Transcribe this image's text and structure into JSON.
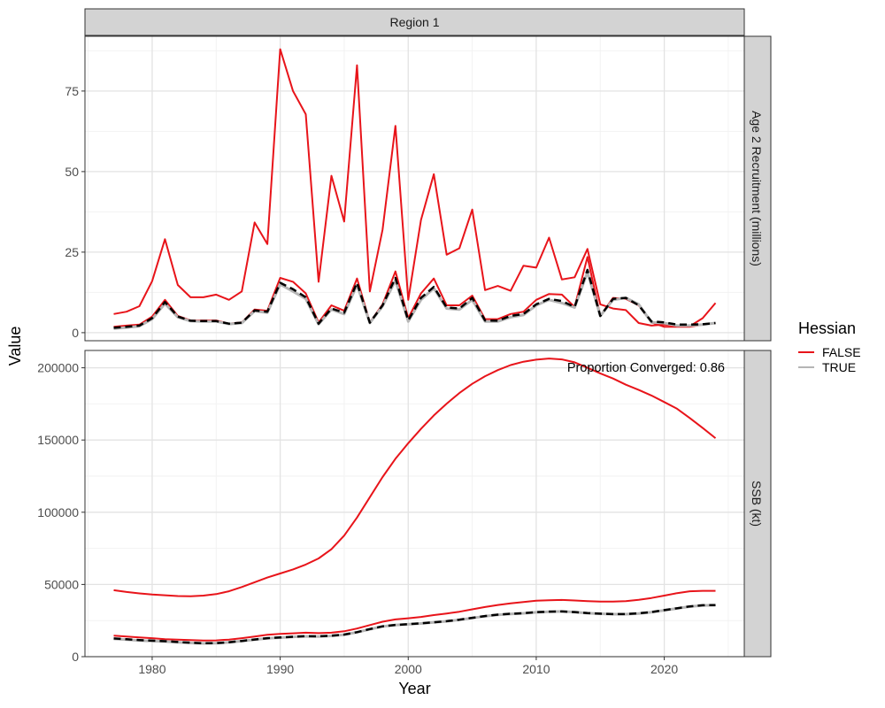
{
  "chart_data": {
    "type": "line",
    "facet_column": "Region 1",
    "xlabel": "Year",
    "ylabel": "Value",
    "xlim": [
      1974.75,
      2026.25
    ],
    "x_ticks": [
      1980,
      1990,
      2000,
      2010,
      2020
    ],
    "x": [
      1977,
      1978,
      1979,
      1980,
      1981,
      1982,
      1983,
      1984,
      1985,
      1986,
      1987,
      1988,
      1989,
      1990,
      1991,
      1992,
      1993,
      1994,
      1995,
      1996,
      1997,
      1998,
      1999,
      2000,
      2001,
      2002,
      2003,
      2004,
      2005,
      2006,
      2007,
      2008,
      2009,
      2010,
      2011,
      2012,
      2013,
      2014,
      2015,
      2016,
      2017,
      2018,
      2019,
      2020,
      2021,
      2022,
      2023,
      2024
    ],
    "legend": {
      "title": "Hessian",
      "position": "right",
      "entries": [
        {
          "label": "FALSE",
          "color": "#e8141a",
          "dashed": false
        },
        {
          "label": "TRUE",
          "color": "#b5b5b5",
          "dashed": false
        }
      ]
    },
    "colors": {
      "false_line": "#e8141a",
      "true_line": "#b5b5b5",
      "median_line": "#000000",
      "strip_fill": "#d3d3d3",
      "panel_border": "#333333",
      "grid_major": "#e3e3e3",
      "grid_minor": "#f2f2f2"
    },
    "grid": true,
    "panels": [
      {
        "strip": "Age 2 Recruitment (millions)",
        "ylim": [
          -2.5,
          92
        ],
        "y_ticks": [
          0,
          25,
          50,
          75
        ],
        "y_tick_labels": [
          "0",
          "25",
          "50",
          "75"
        ],
        "series": [
          {
            "hessian": "FALSE",
            "style": "upper",
            "values": [
              5.8,
              6.5,
              8.2,
              16,
              29,
              14.8,
              11,
              11,
              11.8,
              10.2,
              12.8,
              34.2,
              27.5,
              88,
              75,
              67.8,
              15.8,
              48.7,
              34.5,
              83,
              12.8,
              32,
              64.2,
              10.2,
              35,
              49.2,
              24.2,
              26.2,
              38.2,
              13.2,
              14.5,
              13,
              20.8,
              20.2,
              29.5,
              16.5,
              17.2,
              26,
              8.8,
              7.5,
              7,
              3,
              2.2,
              2.5,
              2.2,
              2,
              4.5,
              9.2
            ]
          },
          {
            "hessian": "FALSE",
            "style": "lower",
            "values": [
              1.8,
              2.2,
              2.5,
              5,
              10.2,
              5.2,
              3.8,
              3.8,
              3.8,
              2.8,
              3.2,
              7.2,
              6.8,
              17,
              15.8,
              12.2,
              3.2,
              8.5,
              6.8,
              16.8,
              3.2,
              8.8,
              19,
              4.5,
              12.2,
              16.8,
              8.5,
              8.5,
              11.5,
              4.2,
              4.2,
              5.8,
              6.5,
              10.2,
              12,
              11.8,
              8,
              23.5,
              5.2,
              10.8,
              10.5,
              8.5,
              3.2,
              1.8,
              1.8,
              1.8,
              2.5,
              3
            ]
          },
          {
            "hessian": "TRUE",
            "style": "solid",
            "values": [
              1.3,
              1.6,
              2,
              4.2,
              9,
              4.8,
              3.6,
              3.5,
              3.5,
              2.7,
              3,
              6.7,
              6.2,
              15,
              12.8,
              10.5,
              2.6,
              7.2,
              5.8,
              14.8,
              3,
              8.2,
              16.2,
              3.5,
              10.2,
              13.8,
              7.5,
              7.2,
              10.2,
              3.5,
              3.5,
              4.8,
              5.5,
              8.5,
              10.2,
              9.2,
              7.8,
              18.8,
              5.2,
              10.2,
              10.8,
              8.8,
              3.2,
              3,
              2.2,
              2.2,
              2.5,
              3
            ]
          },
          {
            "hessian": "median",
            "style": "dashed",
            "values": [
              1.5,
              1.8,
              2.2,
              4.5,
              9.5,
              5,
              3.7,
              3.6,
              3.6,
              2.8,
              3.1,
              6.9,
              6.5,
              15.5,
              13.5,
              11,
              2.8,
              7.5,
              6.2,
              15.5,
              3.1,
              8.5,
              17,
              3.8,
              10.8,
              14.2,
              7.8,
              7.5,
              10.8,
              3.8,
              3.7,
              5.2,
              5.8,
              8.8,
              10.5,
              9.8,
              8,
              19.5,
              5.2,
              10.5,
              10.8,
              8.5,
              3.5,
              3.2,
              2.5,
              2.5,
              2.6,
              3
            ]
          }
        ]
      },
      {
        "strip": "SSB (kt)",
        "ylim": [
          0,
          212000
        ],
        "y_ticks": [
          0,
          50000,
          100000,
          150000,
          200000
        ],
        "y_tick_labels": [
          "0",
          "50000",
          "100000",
          "150000",
          "200000"
        ],
        "annotation": "Proportion Converged:  0.86",
        "series": [
          {
            "hessian": "FALSE",
            "style": "upper",
            "values": [
              46000,
              44800,
              43800,
              43000,
              42500,
              42000,
              41800,
              42300,
              43300,
              45300,
              48200,
              51500,
              54800,
              57600,
              60400,
              63800,
              68000,
              74400,
              83800,
              96300,
              110400,
              124400,
              137000,
              147800,
              157700,
              167000,
              175200,
              182500,
              188900,
              194200,
              198400,
              201900,
              204200,
              205600,
              206400,
              205800,
              203800,
              200000,
              196100,
              192600,
              188300,
              184700,
              180800,
              176300,
              171600,
              165200,
              158300,
              151300
            ]
          },
          {
            "hessian": "FALSE",
            "style": "lower",
            "values": [
              14500,
              14000,
              13300,
              12800,
              12100,
              11800,
              11500,
              11200,
              11300,
              11800,
              12800,
              14000,
              15200,
              15800,
              16200,
              16600,
              16300,
              16600,
              17600,
              19500,
              21900,
              24200,
              25800,
              26600,
              27500,
              28800,
              29900,
              31100,
              32800,
              34400,
              35800,
              36900,
              37800,
              38700,
              39100,
              39300,
              38900,
              38400,
              38100,
              38100,
              38400,
              39400,
              40600,
              42300,
              44000,
              45300,
              45600,
              45600
            ]
          },
          {
            "hessian": "TRUE",
            "style": "solid",
            "values": [
              12300,
              11800,
              11200,
              10800,
              10500,
              10000,
              9500,
              9200,
              9300,
              9900,
              10800,
              11800,
              12700,
              13200,
              13700,
              14100,
              14000,
              14400,
              15200,
              16900,
              19000,
              20900,
              21900,
              22400,
              23000,
              23700,
              24500,
              25500,
              26800,
              28000,
              29000,
              29600,
              30000,
              30700,
              31100,
              31300,
              30900,
              30100,
              29700,
              29400,
              29400,
              29900,
              30800,
              32100,
              33400,
              34700,
              35500,
              35600
            ]
          },
          {
            "hessian": "median",
            "style": "dashed",
            "values": [
              12600,
              12100,
              11500,
              11100,
              10700,
              10200,
              9700,
              9300,
              9400,
              10000,
              10900,
              11900,
              12800,
              13300,
              13800,
              14200,
              14100,
              14500,
              15300,
              17000,
              19100,
              21000,
              22000,
              22500,
              23100,
              23800,
              24600,
              25600,
              26900,
              28100,
              29100,
              29700,
              30100,
              30800,
              31200,
              31300,
              30900,
              30200,
              29800,
              29500,
              29500,
              30000,
              30900,
              32200,
              33500,
              34800,
              35600,
              35700
            ]
          }
        ]
      }
    ]
  }
}
